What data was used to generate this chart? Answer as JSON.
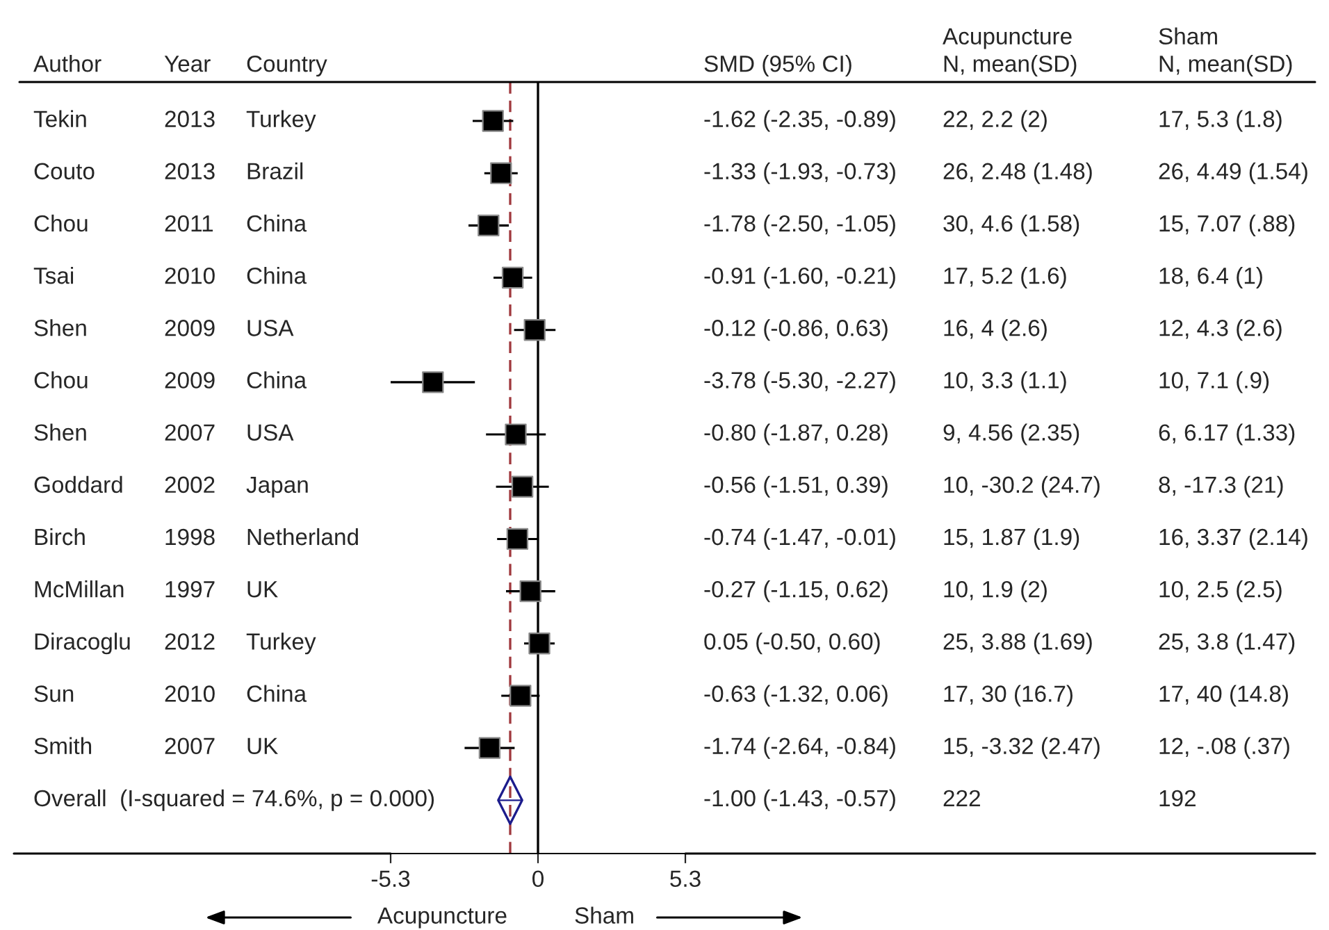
{
  "chart_data": {
    "type": "scatter",
    "orientation": "horizontal",
    "tick_labels": "x",
    "categories": [
      "Tekin",
      "Couto",
      "Chou",
      "Tsai",
      "Shen",
      "Chou",
      "Shen",
      "Goddard",
      "Birch",
      "McMillan",
      "Diracoglu",
      "Sun",
      "Smith",
      "Overall  (I-squared = 74.6%, p = 0.000)"
    ],
    "series": [
      {
        "color": "#000000",
        "marker": "square",
        "values": [
          -1.62,
          -1.33,
          -1.78,
          -0.91,
          -0.12,
          -3.78,
          -0.8,
          -0.56,
          -0.74,
          -0.27,
          0.05,
          -0.63,
          -1.74,
          null
        ],
        "errors": [
          [
            -2.35,
            -0.89
          ],
          [
            -1.93,
            -0.73
          ],
          [
            -2.5,
            -1.05
          ],
          [
            -1.6,
            -0.21
          ],
          [
            -0.86,
            0.63
          ],
          [
            -5.3,
            -2.27
          ],
          [
            -1.87,
            0.28
          ],
          [
            -1.51,
            0.39
          ],
          [
            -1.47,
            -0.01
          ],
          [
            -1.15,
            0.62
          ],
          [
            -0.5,
            0.6
          ],
          [
            -1.32,
            0.06
          ],
          [
            -2.64,
            -0.84
          ],
          null
        ]
      },
      {
        "color": "#1c1c8c",
        "marker": "diamond",
        "values": [
          null,
          null,
          null,
          null,
          null,
          null,
          null,
          null,
          null,
          null,
          null,
          null,
          null,
          -1.0
        ],
        "errors": [
          null,
          null,
          null,
          null,
          null,
          null,
          null,
          null,
          null,
          null,
          null,
          null,
          null,
          [
            -1.43,
            -0.57
          ]
        ]
      }
    ],
    "value_labels": [
      "-1.62 (-2.35, -0.89)",
      "-1.33 (-1.93, -0.73)",
      "-1.78 (-2.50, -1.05)",
      "-0.91 (-1.60, -0.21)",
      "-0.12 (-0.86, 0.63)",
      "-3.78 (-5.30, -2.27)",
      "-0.80 (-1.87, 0.28)",
      "-0.56 (-1.51, 0.39)",
      "-0.74 (-1.47, -0.01)",
      "-0.27 (-1.15, 0.62)",
      "0.05 (-0.50, 0.60)",
      "-0.63 (-1.32, 0.06)",
      "-1.74 (-2.64, -0.84)",
      "-1.00 (-1.43, -0.57)"
    ],
    "xlim": [
      -5.3,
      5.3
    ],
    "xticks": [
      -5.3,
      0,
      5.3
    ],
    "ref_lines": [
      {
        "axis": "x",
        "value": 0,
        "color": "#000000",
        "line_style": "solid"
      },
      {
        "axis": "x",
        "value": -1.0,
        "color": "#a0393e",
        "line_style": "dashed"
      }
    ],
    "annotations": [
      "Author",
      "Year",
      "Country",
      "SMD (95% CI)",
      "Acupuncture\nN, mean(SD)",
      "Sham\nN, mean(SD)",
      "2013",
      "Turkey",
      "22, 2.2 (2)",
      "17, 5.3 (1.8)",
      "2013",
      "Brazil",
      "26, 2.48 (1.48)",
      "26, 4.49 (1.54)",
      "2011",
      "China",
      "30, 4.6 (1.58)",
      "15, 7.07 (.88)",
      "2010",
      "China",
      "17, 5.2 (1.6)",
      "18, 6.4 (1)",
      "2009",
      "USA",
      "16, 4 (2.6)",
      "12, 4.3 (2.6)",
      "2009",
      "China",
      "10, 3.3 (1.1)",
      "10, 7.1 (.9)",
      "2007",
      "USA",
      "9, 4.56 (2.35)",
      "6, 6.17 (1.33)",
      "2002",
      "Japan",
      "10, -30.2 (24.7)",
      "8, -17.3 (21)",
      "1998",
      "Netherland",
      "15, 1.87 (1.9)",
      "16, 3.37 (2.14)",
      "1997",
      "UK",
      "10, 1.9 (2)",
      "10, 2.5 (2.5)",
      "2012",
      "Turkey",
      "25, 3.88 (1.69)",
      "25, 3.8 (1.47)",
      "2010",
      "China",
      "17, 30 (16.7)",
      "17, 40 (14.8)",
      "2007",
      "UK",
      "15, -3.32 (2.47)",
      "12, -.08 (.37)",
      "222",
      "192",
      "Acupuncture",
      "Sham"
    ]
  }
}
